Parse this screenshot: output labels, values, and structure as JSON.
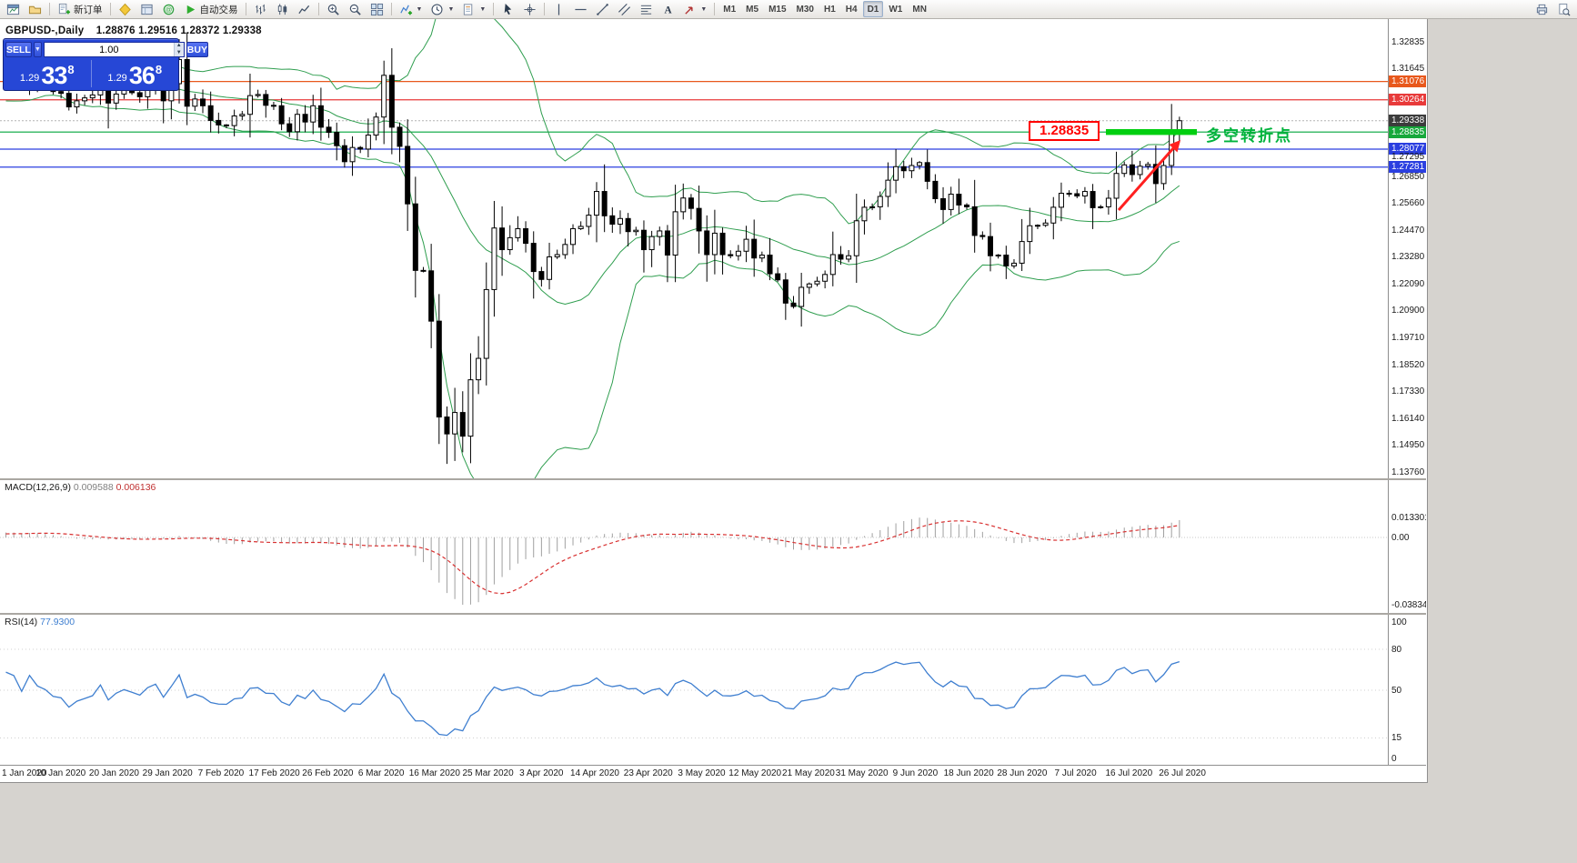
{
  "toolbar": {
    "items": [
      {
        "icon": "chart-window-icon",
        "name": "new-chart-button"
      },
      {
        "icon": "profiles-icon",
        "name": "profiles-button"
      },
      {
        "type": "sep"
      },
      {
        "icon": "new-order-icon",
        "label": "新订单",
        "name": "new-order-button"
      },
      {
        "type": "sep"
      },
      {
        "icon": "metaeditor-icon",
        "name": "metaeditor-button"
      },
      {
        "icon": "market-watch-icon",
        "name": "market-watch-button"
      },
      {
        "icon": "community-icon",
        "name": "community-button"
      },
      {
        "icon": "autotrading-icon",
        "label": "自动交易",
        "name": "autotrading-button"
      },
      {
        "type": "sep"
      },
      {
        "icon": "bars-chart-icon",
        "name": "bars-chart-button"
      },
      {
        "icon": "candlestick-chart-icon",
        "name": "candlestick-chart-button"
      },
      {
        "icon": "line-chart-icon",
        "name": "line-chart-button"
      },
      {
        "type": "sep"
      },
      {
        "icon": "zoom-in-icon",
        "name": "zoom-in-button"
      },
      {
        "icon": "zoom-out-icon",
        "name": "zoom-out-button"
      },
      {
        "icon": "tile-windows-icon",
        "name": "tile-windows-button"
      },
      {
        "type": "sep"
      },
      {
        "icon": "indicators-icon",
        "name": "indicators-button",
        "dropdown": true
      },
      {
        "icon": "periods-icon",
        "name": "periods-button",
        "dropdown": true
      },
      {
        "icon": "templates-icon",
        "name": "templates-button",
        "dropdown": true
      },
      {
        "type": "sep"
      },
      {
        "icon": "cursor-icon",
        "name": "cursor-button"
      },
      {
        "icon": "crosshair-icon",
        "name": "crosshair-button"
      },
      {
        "type": "sep"
      },
      {
        "icon": "vertical-line-icon",
        "name": "vertical-line-button"
      },
      {
        "icon": "horizontal-line-icon",
        "name": "horizontal-line-button"
      },
      {
        "icon": "trendline-icon",
        "name": "trendline-button"
      },
      {
        "icon": "channel-icon",
        "name": "channel-button"
      },
      {
        "icon": "fibonacci-icon",
        "name": "fibonacci-button"
      },
      {
        "icon": "text-icon",
        "name": "text-button"
      },
      {
        "icon": "arrows-icon",
        "name": "arrows-button",
        "dropdown": true
      },
      {
        "type": "sep"
      },
      {
        "tf": true,
        "label": "M1",
        "name": "timeframe-m1-button"
      },
      {
        "tf": true,
        "label": "M5",
        "name": "timeframe-m5-button"
      },
      {
        "tf": true,
        "label": "M15",
        "name": "timeframe-m15-button"
      },
      {
        "tf": true,
        "label": "M30",
        "name": "timeframe-m30-button"
      },
      {
        "tf": true,
        "label": "H1",
        "name": "timeframe-h1-button"
      },
      {
        "tf": true,
        "label": "H4",
        "name": "timeframe-h4-button"
      },
      {
        "tf": true,
        "label": "D1",
        "name": "timeframe-d1-button",
        "active": true
      },
      {
        "tf": true,
        "label": "W1",
        "name": "timeframe-w1-button"
      },
      {
        "tf": true,
        "label": "MN",
        "name": "timeframe-mn-button"
      },
      {
        "type": "spacer"
      },
      {
        "icon": "print-icon",
        "name": "print-button"
      },
      {
        "icon": "print-preview-icon",
        "name": "print-preview-button"
      }
    ]
  },
  "trade_panel": {
    "sell_label": "SELL",
    "buy_label": "BUY",
    "volume": "1.00",
    "sell_small": "1.29",
    "sell_big": "33",
    "sell_sup": "8",
    "buy_small": "1.29",
    "buy_big": "36",
    "buy_sup": "8"
  },
  "chart": {
    "title_symbol": "GBPUSD-,Daily",
    "title_ohlc": "1.28876 1.29516 1.28372 1.29338",
    "annotation_price_label": "1.28835",
    "annotation_note": "多空转折点",
    "price_axis": [
      {
        "text": "1.32835"
      },
      {
        "text": "1.31645"
      },
      {
        "text": "1.31076",
        "badge": "#e8581c"
      },
      {
        "text": "1.30264",
        "badge": "#e83a3a"
      },
      {
        "text": "1.29338",
        "badge": "#3c3c3c"
      },
      {
        "text": "1.28835",
        "badge": "#17a83b"
      },
      {
        "text": "1.28077",
        "badge": "#2b3fe0"
      },
      {
        "text": "1.27295"
      },
      {
        "text": "1.27281",
        "badge": "#2b3fe0"
      },
      {
        "text": "1.26850"
      },
      {
        "text": "1.25660"
      },
      {
        "text": "1.24470"
      },
      {
        "text": "1.23280"
      },
      {
        "text": "1.22090"
      },
      {
        "text": "1.20900"
      },
      {
        "text": "1.19710"
      },
      {
        "text": "1.18520"
      },
      {
        "text": "1.17330"
      },
      {
        "text": "1.16140"
      },
      {
        "text": "1.14950"
      },
      {
        "text": "1.13760"
      }
    ],
    "macd": {
      "name": "MACD(12,26,9)",
      "value_main": "0.009588",
      "value_signal": "0.006136",
      "axis": [
        "0.013301",
        "0.00",
        "-0.038343"
      ]
    },
    "rsi": {
      "name": "RSI(14)",
      "value": "77.9300",
      "axis": [
        "100",
        "80",
        "50",
        "15",
        "0"
      ]
    },
    "time_axis": [
      "1 Jan 2020",
      "10 Jan 2020",
      "20 Jan 2020",
      "29 Jan 2020",
      "7 Feb 2020",
      "17 Feb 2020",
      "26 Feb 2020",
      "6 Mar 2020",
      "16 Mar 2020",
      "25 Mar 2020",
      "3 Apr 2020",
      "14 Apr 2020",
      "23 Apr 2020",
      "3 May 2020",
      "12 May 2020",
      "21 May 2020",
      "31 May 2020",
      "9 Jun 2020",
      "18 Jun 2020",
      "28 Jun 2020",
      "7 Jul 2020",
      "16 Jul 2020",
      "26 Jul 2020"
    ]
  },
  "chart_data": {
    "type": "candlestick",
    "symbol": "GBPUSD",
    "period": "Daily",
    "ohlc_current": {
      "open": 1.28876,
      "high": 1.29516,
      "low": 1.28372,
      "close": 1.29338
    },
    "current_price": 1.29338,
    "first_open": 1.3165,
    "closes": [
      1.315,
      1.314,
      1.3085,
      1.3165,
      1.3118,
      1.31,
      1.3063,
      1.3055,
      1.2995,
      1.3022,
      1.3035,
      1.3048,
      1.3105,
      1.3012,
      1.3052,
      1.3075,
      1.3058,
      1.304,
      1.3085,
      1.3108,
      1.3022,
      1.3098,
      1.3205,
      1.2998,
      1.303,
      1.3,
      1.2935,
      1.2915,
      1.2912,
      1.2955,
      1.2962,
      1.3045,
      1.305,
      1.3002,
      1.3,
      1.292,
      1.2885,
      1.2962,
      1.2928,
      1.3,
      1.2905,
      1.2882,
      1.2823,
      1.2752,
      1.2815,
      1.2808,
      1.287,
      1.295,
      1.3135,
      1.2905,
      1.282,
      1.2565,
      1.227,
      1.2268,
      1.2045,
      1.162,
      1.1545,
      1.164,
      1.1535,
      1.1785,
      1.188,
      1.2185,
      1.2458,
      1.2362,
      1.2415,
      1.2455,
      1.239,
      1.2265,
      1.223,
      1.233,
      1.234,
      1.2385,
      1.2455,
      1.2465,
      1.2515,
      1.262,
      1.2512,
      1.2475,
      1.25,
      1.2442,
      1.2448,
      1.2362,
      1.242,
      1.2445,
      1.2338,
      1.253,
      1.2591,
      1.2545,
      1.2445,
      1.234,
      1.2435,
      1.234,
      1.2335,
      1.2355,
      1.2408,
      1.2325,
      1.2338,
      1.2255,
      1.2228,
      1.2125,
      1.211,
      1.2195,
      1.221,
      1.2222,
      1.2252,
      1.234,
      1.232,
      1.2335,
      1.249,
      1.255,
      1.2552,
      1.2598,
      1.267,
      1.273,
      1.2712,
      1.2735,
      1.2748,
      1.2665,
      1.2588,
      1.254,
      1.2608,
      1.256,
      1.2552,
      1.2425,
      1.242,
      1.2335,
      1.2338,
      1.229,
      1.2302,
      1.2398,
      1.2468,
      1.247,
      1.248,
      1.255,
      1.2612,
      1.261,
      1.26,
      1.262,
      1.2548,
      1.2552,
      1.259,
      1.27,
      1.2738,
      1.2695,
      1.2732,
      1.274,
      1.2655,
      1.2735,
      1.2888,
      1.29338
    ],
    "overrides": [
      {
        "i": 48,
        "h": 1.32
      },
      {
        "i": 56,
        "l": 1.1412
      },
      {
        "i": 149,
        "o": 1.28876,
        "h": 1.29516,
        "l": 1.28372,
        "c": 1.29338
      }
    ],
    "bollinger": {
      "period": 20,
      "deviation": 2,
      "color": "#2f9e4f"
    },
    "macd": {
      "fast": 12,
      "slow": 26,
      "signal": 9,
      "hist_color": "#a0a0a0",
      "signal_color": "#d83030"
    },
    "rsi": {
      "period": 14,
      "color": "#3f7fd0",
      "levels": [
        80,
        50,
        15
      ]
    },
    "levels": [
      {
        "price": 1.31076,
        "color": "#e8581c"
      },
      {
        "price": 1.30264,
        "color": "#e83a3a"
      },
      {
        "price": 1.28835,
        "color": "#00a53c"
      },
      {
        "price": 1.28077,
        "color": "#2b3fe0"
      },
      {
        "price": 1.27281,
        "color": "#2b3fe0"
      }
    ],
    "current_line_color": "#b4b4b4",
    "annotations": {
      "level": 1.28835,
      "label_color": "#ff0000",
      "note_color": "#00b33c",
      "segment_color": "#00cf10",
      "arrow_color": "#ff2020"
    }
  }
}
